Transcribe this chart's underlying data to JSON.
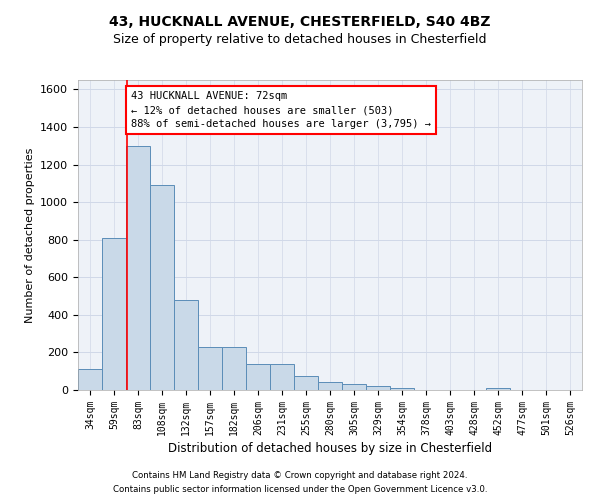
{
  "title1": "43, HUCKNALL AVENUE, CHESTERFIELD, S40 4BZ",
  "title2": "Size of property relative to detached houses in Chesterfield",
  "xlabel": "Distribution of detached houses by size in Chesterfield",
  "ylabel": "Number of detached properties",
  "bar_labels": [
    "34sqm",
    "59sqm",
    "83sqm",
    "108sqm",
    "132sqm",
    "157sqm",
    "182sqm",
    "206sqm",
    "231sqm",
    "255sqm",
    "280sqm",
    "305sqm",
    "329sqm",
    "354sqm",
    "378sqm",
    "403sqm",
    "428sqm",
    "452sqm",
    "477sqm",
    "501sqm",
    "526sqm"
  ],
  "bar_values": [
    110,
    810,
    1300,
    1090,
    480,
    230,
    230,
    140,
    140,
    75,
    40,
    30,
    20,
    10,
    0,
    0,
    0,
    10,
    0,
    0,
    0
  ],
  "bar_color": "#c9d9e8",
  "bar_edge_color": "#5b8db8",
  "red_line_x": 1.55,
  "annotation_text": "43 HUCKNALL AVENUE: 72sqm\n← 12% of detached houses are smaller (503)\n88% of semi-detached houses are larger (3,795) →",
  "annotation_box_color": "white",
  "annotation_box_edge_color": "red",
  "annotation_fontsize": 7.5,
  "ylim": [
    0,
    1650
  ],
  "yticks": [
    0,
    200,
    400,
    600,
    800,
    1000,
    1200,
    1400,
    1600
  ],
  "grid_color": "#d0d8e8",
  "footer1": "Contains HM Land Registry data © Crown copyright and database right 2024.",
  "footer2": "Contains public sector information licensed under the Open Government Licence v3.0.",
  "title1_fontsize": 10,
  "title2_fontsize": 9,
  "bg_color": "#eef2f8"
}
